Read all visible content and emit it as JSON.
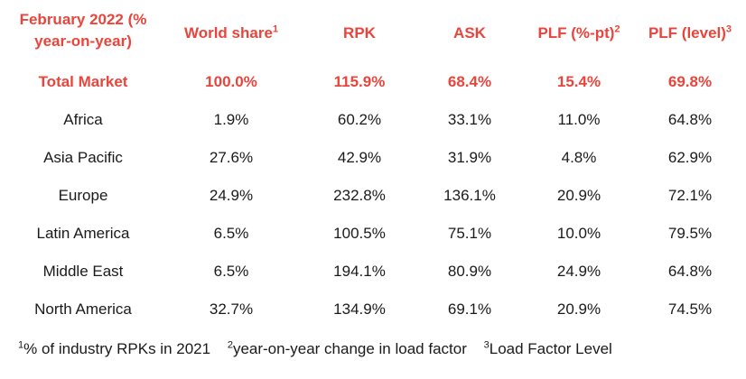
{
  "header": {
    "period_line1": "February 2022 (%",
    "period_line2": "year-on-year)",
    "world_share": "World share",
    "world_share_sup": "1",
    "rpk": "RPK",
    "ask": "ASK",
    "plf_pt": "PLF (%-pt)",
    "plf_pt_sup": "2",
    "plf_level": "PLF (level)",
    "plf_level_sup": "3"
  },
  "total": {
    "region": "Total Market",
    "world_share": "100.0%",
    "rpk": "115.9%",
    "ask": "68.4%",
    "plf_pt": "15.4%",
    "plf_level": "69.8%"
  },
  "rows": [
    {
      "region": "Africa",
      "world_share": "1.9%",
      "rpk": "60.2%",
      "ask": "33.1%",
      "plf_pt": "11.0%",
      "plf_level": "64.8%"
    },
    {
      "region": "Asia Pacific",
      "world_share": "27.6%",
      "rpk": "42.9%",
      "ask": "31.9%",
      "plf_pt": "4.8%",
      "plf_level": "62.9%"
    },
    {
      "region": "Europe",
      "world_share": "24.9%",
      "rpk": "232.8%",
      "ask": "136.1%",
      "plf_pt": "20.9%",
      "plf_level": "72.1%"
    },
    {
      "region": "Latin America",
      "world_share": "6.5%",
      "rpk": "100.5%",
      "ask": "75.1%",
      "plf_pt": "10.0%",
      "plf_level": "79.5%"
    },
    {
      "region": "Middle East",
      "world_share": "6.5%",
      "rpk": "194.1%",
      "ask": "80.9%",
      "plf_pt": "24.9%",
      "plf_level": "64.8%"
    },
    {
      "region": "North America",
      "world_share": "32.7%",
      "rpk": "134.9%",
      "ask": "69.1%",
      "plf_pt": "20.9%",
      "plf_level": "74.5%"
    }
  ],
  "footnotes": [
    {
      "sup": "1",
      "text": "% of industry RPKs in 2021"
    },
    {
      "sup": "2",
      "text": "year-on-year change in load factor"
    },
    {
      "sup": "3",
      "text": "Load Factor Level"
    }
  ],
  "colors": {
    "accent": "#e8453c",
    "text": "#1a1a1a"
  }
}
